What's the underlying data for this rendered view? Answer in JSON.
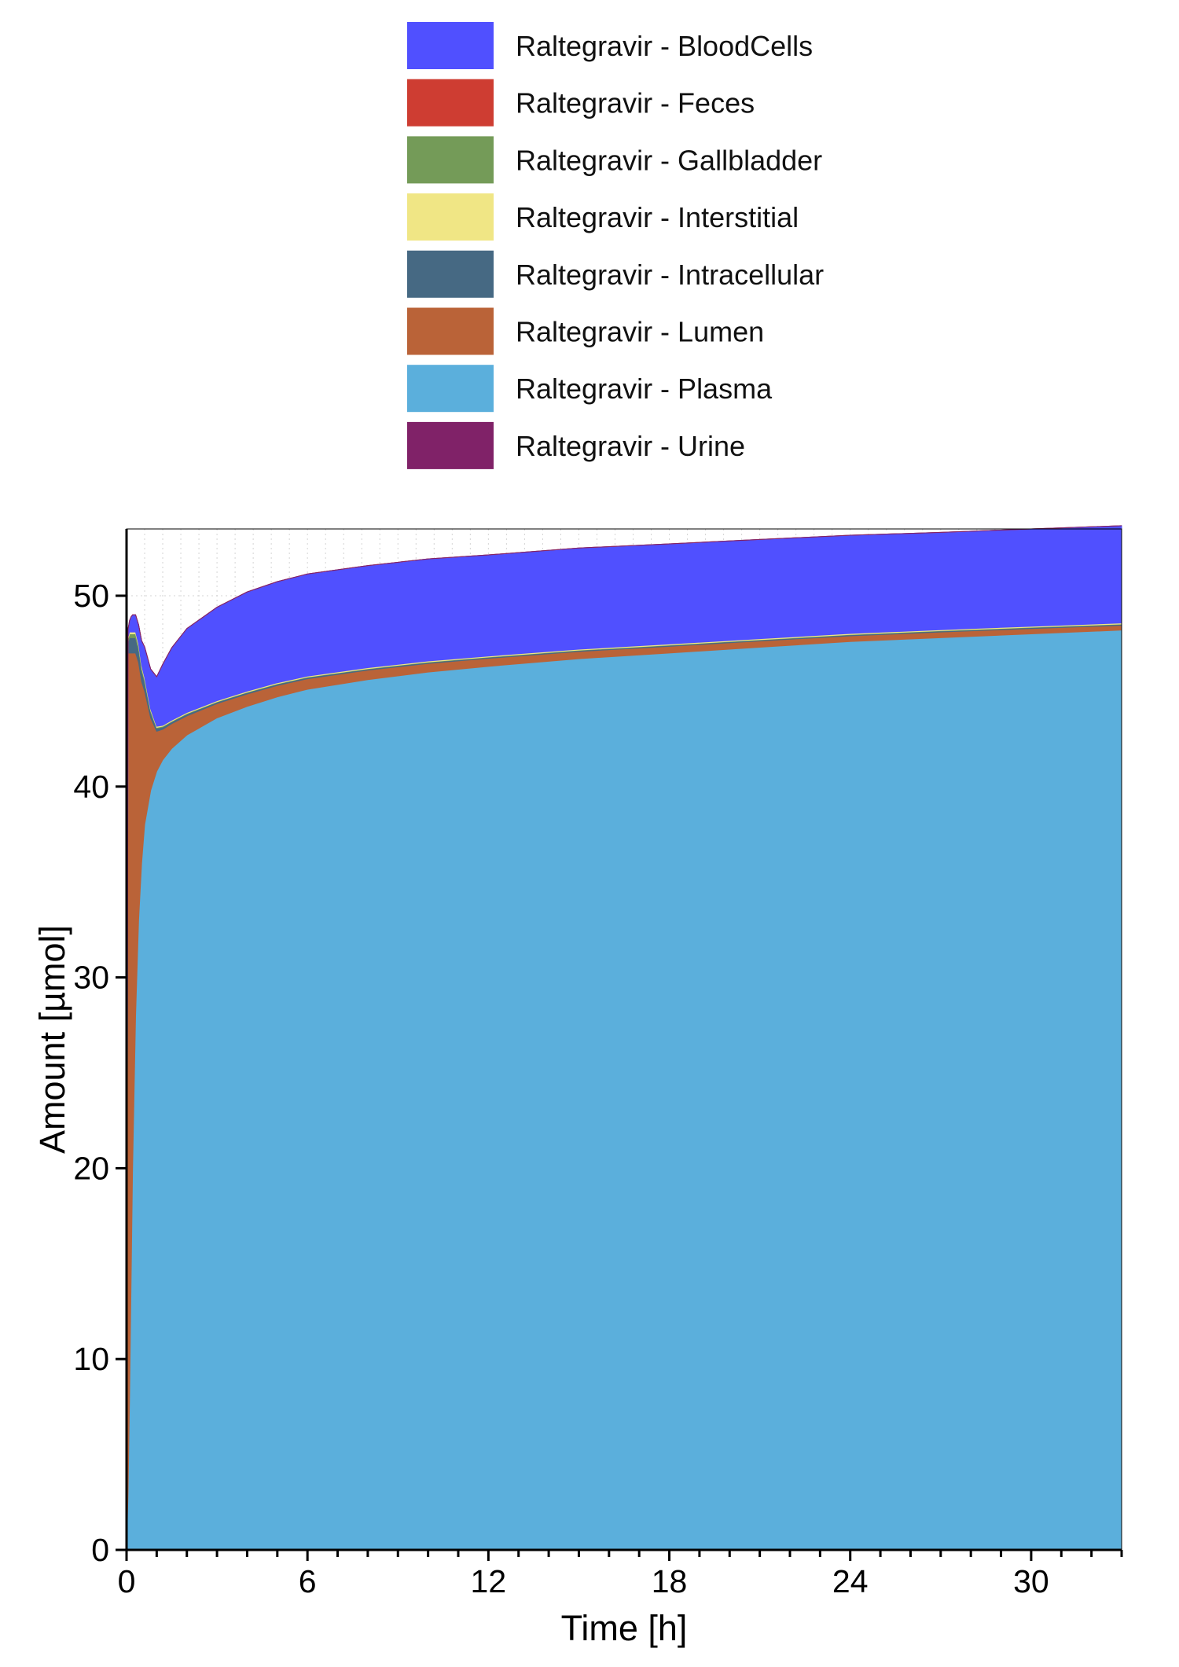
{
  "chart_data": {
    "type": "area",
    "stacked": true,
    "xlabel": "Time [h]",
    "ylabel": "Amount [µmol]",
    "xlim": [
      0,
      33
    ],
    "ylim": [
      0,
      53.5
    ],
    "xticks": [
      0,
      6,
      12,
      18,
      24,
      30
    ],
    "yticks": [
      0,
      10,
      20,
      30,
      40,
      50
    ],
    "grid": "dotted",
    "legend_position": "top",
    "x": [
      0,
      0.05,
      0.1,
      0.15,
      0.2,
      0.3,
      0.4,
      0.5,
      0.6,
      0.8,
      1.0,
      1.2,
      1.5,
      2,
      3,
      4,
      5,
      6,
      8,
      10,
      12,
      15,
      18,
      21,
      24,
      27,
      30,
      33
    ],
    "series": [
      {
        "name": "Raltegravir - Plasma",
        "color": "#5BAFDC",
        "values": [
          0,
          3,
          8,
          14,
          20,
          28,
          33,
          36,
          38,
          39.8,
          40.8,
          41.4,
          42.0,
          42.7,
          43.6,
          44.2,
          44.7,
          45.1,
          45.6,
          46.0,
          46.3,
          46.7,
          47.0,
          47.3,
          47.6,
          47.8,
          48.0,
          48.2
        ]
      },
      {
        "name": "Raltegravir - Lumen",
        "color": "#BA6338",
        "values": [
          0,
          44,
          39,
          33,
          27,
          19,
          13.5,
          9.5,
          7,
          3.8,
          2.1,
          1.6,
          1.3,
          1.0,
          0.75,
          0.65,
          0.6,
          0.55,
          0.5,
          0.45,
          0.42,
          0.38,
          0.35,
          0.33,
          0.3,
          0.3,
          0.28,
          0.25
        ]
      },
      {
        "name": "Raltegravir - Intracellular",
        "color": "#466983",
        "values": [
          0,
          0.6,
          0.8,
          0.8,
          0.8,
          0.8,
          0.7,
          0.6,
          0.5,
          0.3,
          0.15,
          0.12,
          0.1,
          0.1,
          0.08,
          0.08,
          0.07,
          0.07,
          0.06,
          0.06,
          0.05,
          0.05,
          0.05,
          0.05,
          0.05,
          0.05,
          0.05,
          0.05
        ]
      },
      {
        "name": "Raltegravir - Gallbladder",
        "color": "#749B58",
        "values": [
          0,
          0.15,
          0.2,
          0.2,
          0.2,
          0.2,
          0.18,
          0.15,
          0.12,
          0.08,
          0.05,
          0.04,
          0.03,
          0.03,
          0.02,
          0.02,
          0.02,
          0.02,
          0.02,
          0.02,
          0.02,
          0.02,
          0.02,
          0.02,
          0.02,
          0.02,
          0.02,
          0.02
        ]
      },
      {
        "name": "Raltegravir - Interstitial",
        "color": "#F0E685",
        "values": [
          0,
          0.1,
          0.1,
          0.1,
          0.1,
          0.1,
          0.1,
          0.1,
          0.1,
          0.08,
          0.06,
          0.05,
          0.05,
          0.05,
          0.05,
          0.05,
          0.05,
          0.05,
          0.05,
          0.05,
          0.05,
          0.05,
          0.05,
          0.05,
          0.05,
          0.05,
          0.05,
          0.05
        ]
      },
      {
        "name": "Raltegravir - BloodCells",
        "color": "#5050FF",
        "values": [
          0,
          0.4,
          0.6,
          0.8,
          0.9,
          0.9,
          1.0,
          1.3,
          1.6,
          2.1,
          2.6,
          3.2,
          3.8,
          4.4,
          4.9,
          5.2,
          5.3,
          5.35,
          5.35,
          5.35,
          5.3,
          5.3,
          5.25,
          5.2,
          5.15,
          5.1,
          5.1,
          5.1
        ]
      },
      {
        "name": "Raltegravir - Feces",
        "color": "#CE3D32",
        "values": [
          0,
          0,
          0,
          0,
          0,
          0,
          0,
          0,
          0,
          0,
          0,
          0,
          0,
          0,
          0,
          0,
          0,
          0,
          0,
          0,
          0,
          0,
          0,
          0,
          0,
          0,
          0,
          0
        ]
      },
      {
        "name": "Raltegravir - Urine",
        "color": "#802268",
        "values": [
          0,
          0,
          0,
          0,
          0,
          0,
          0,
          0,
          0,
          0,
          0,
          0,
          0,
          0,
          0,
          0,
          0,
          0,
          0,
          0,
          0,
          0,
          0,
          0,
          0,
          0,
          0,
          0
        ]
      }
    ],
    "legend": [
      {
        "label": "Raltegravir - BloodCells",
        "color": "#5050FF"
      },
      {
        "label": "Raltegravir - Feces",
        "color": "#CE3D32"
      },
      {
        "label": "Raltegravir - Gallbladder",
        "color": "#749B58"
      },
      {
        "label": "Raltegravir - Interstitial",
        "color": "#F0E685"
      },
      {
        "label": "Raltegravir - Intracellular",
        "color": "#466983"
      },
      {
        "label": "Raltegravir - Lumen",
        "color": "#BA6338"
      },
      {
        "label": "Raltegravir - Plasma",
        "color": "#5BAFDC"
      },
      {
        "label": "Raltegravir - Urine",
        "color": "#802268"
      }
    ]
  }
}
